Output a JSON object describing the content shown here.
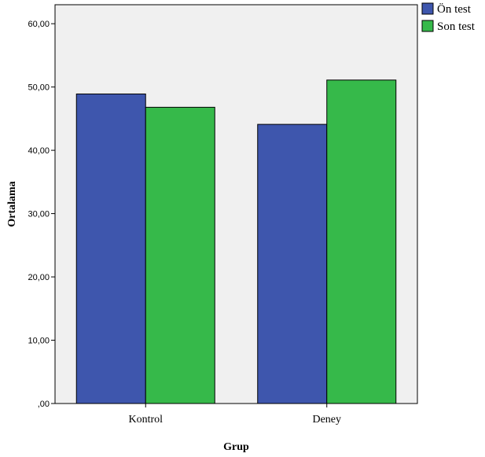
{
  "chart_data": {
    "type": "bar",
    "categories": [
      "Kontrol",
      "Deney"
    ],
    "series": [
      {
        "name": "Ön test",
        "values": [
          48.9,
          44.1
        ],
        "color": "#3e56ad"
      },
      {
        "name": "Son test",
        "values": [
          46.8,
          51.1
        ],
        "color": "#36b94a"
      }
    ],
    "xlabel": "Grup",
    "ylabel": "Ortalama",
    "ylim": [
      0,
      63
    ],
    "yticks": [
      0,
      10,
      20,
      30,
      40,
      50,
      60
    ],
    "ytick_labels": [
      ",00",
      "10,00",
      "20,00",
      "30,00",
      "40,00",
      "50,00",
      "60,00"
    ],
    "grid": false,
    "legend_position": "top-right",
    "plot_background": "#f0f0f0"
  }
}
